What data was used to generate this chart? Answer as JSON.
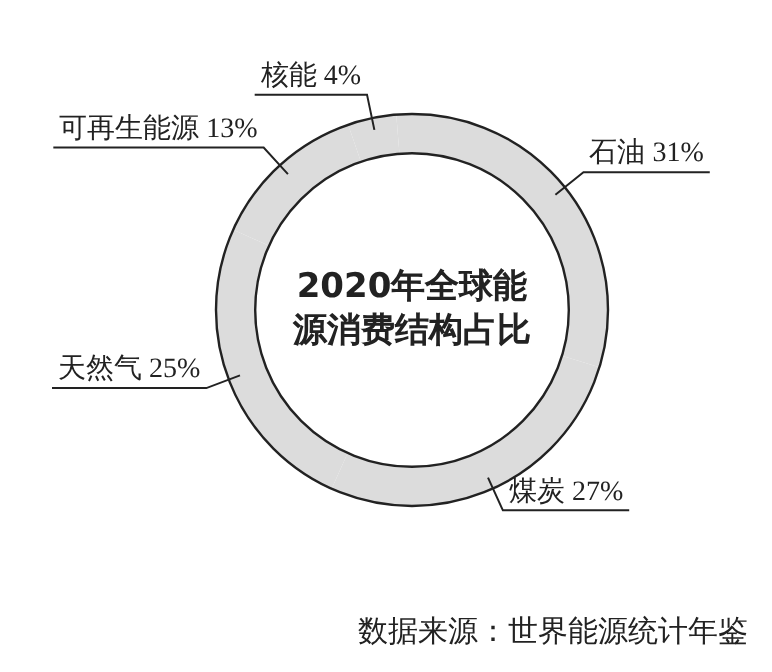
{
  "chart_data": {
    "type": "donut",
    "title": "2020年全球能源消费结构占比",
    "categories": [
      "核能",
      "石油",
      "煤炭",
      "天然气",
      "可再生能源"
    ],
    "values": [
      4,
      31,
      27,
      25,
      13
    ],
    "value_labels": [
      "4%",
      "31%",
      "27%",
      "25%",
      "13%"
    ],
    "colors": [
      "#dcdcdc",
      "#dcdcdc",
      "#dcdcdc",
      "#dcdcdc",
      "#dcdcdc"
    ],
    "legend": false,
    "annotations": [
      "数据来源：世界能源统计年鉴"
    ]
  }
}
